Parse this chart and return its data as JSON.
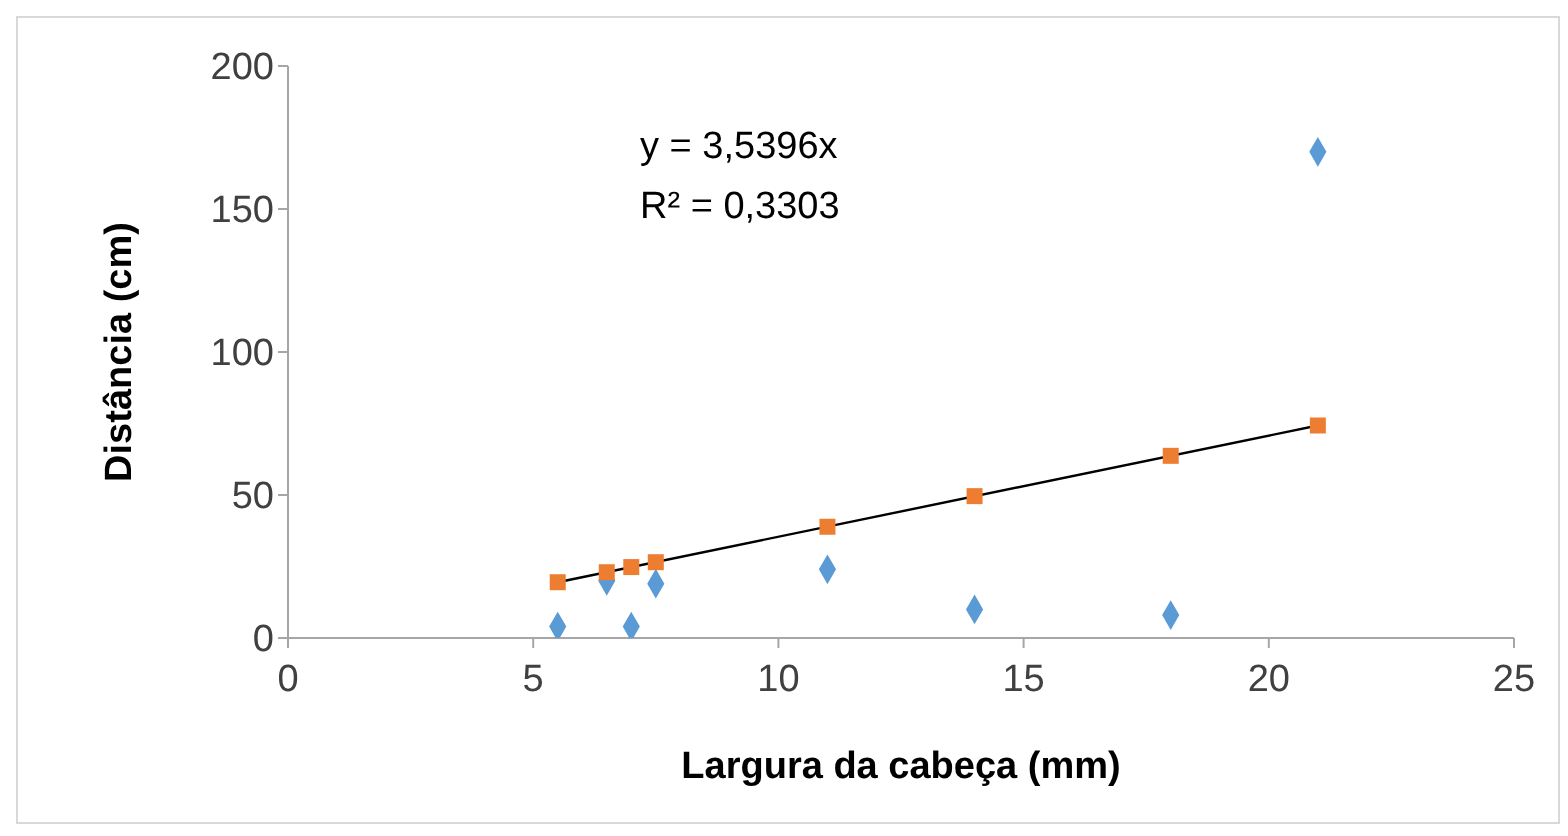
{
  "chart_data": {
    "type": "scatter",
    "xlabel": "Largura da cabeça (mm)",
    "ylabel": "Distância (cm)",
    "xlim": [
      0,
      25
    ],
    "xticks": [
      0,
      5,
      10,
      15,
      20,
      25
    ],
    "ylim": [
      0,
      200
    ],
    "yticks": [
      0,
      50,
      100,
      150,
      200
    ],
    "grid": false,
    "annotations": [
      "y = 3,5396x",
      "R² = 0,3303"
    ],
    "series": [
      {
        "marker": "diamond",
        "color": "#5b9bd5",
        "x": [
          5.5,
          6.5,
          7,
          7.5,
          11,
          14,
          18,
          21
        ],
        "values": [
          4,
          20,
          4,
          19,
          24,
          10,
          8,
          170
        ]
      },
      {
        "marker": "square",
        "color": "#ed7d31",
        "x": [
          5.5,
          6.5,
          7,
          7.5,
          11,
          14,
          18,
          21
        ],
        "values": [
          19.5,
          23,
          24.8,
          26.5,
          38.9,
          49.6,
          63.7,
          74.3
        ]
      },
      {
        "type": "line",
        "marker": "none",
        "color": "#000000",
        "x": [
          5.5,
          21
        ],
        "values": [
          19.5,
          74.3
        ]
      }
    ]
  }
}
